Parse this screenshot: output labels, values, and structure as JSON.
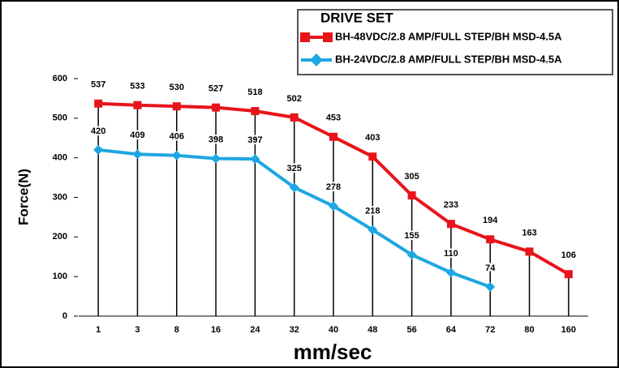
{
  "chart_data": {
    "type": "line",
    "legend_title": "DRIVE SET",
    "xlabel": "mm/sec",
    "ylabel": "Force(N)",
    "categories": [
      "1",
      "3",
      "8",
      "16",
      "24",
      "32",
      "40",
      "48",
      "56",
      "64",
      "72",
      "80",
      "160"
    ],
    "series": [
      {
        "name": "BH-48VDC/2.8 AMP/FULL STEP/BH MSD-4.5A",
        "color": "#e8141b",
        "marker": "square",
        "values": [
          537,
          533,
          530,
          527,
          518,
          502,
          453,
          403,
          305,
          233,
          194,
          163,
          106
        ]
      },
      {
        "name": "BH-24VDC/2.8 AMP/FULL STEP/BH MSD-4.5A",
        "color": "#1ea7e1",
        "marker": "diamond",
        "values": [
          420,
          409,
          406,
          398,
          397,
          325,
          278,
          218,
          155,
          110,
          74,
          null,
          null
        ]
      }
    ],
    "ylim": [
      0,
      600
    ],
    "yticks": [
      0,
      100,
      200,
      300,
      400,
      500,
      600
    ],
    "drop_lines": true
  }
}
